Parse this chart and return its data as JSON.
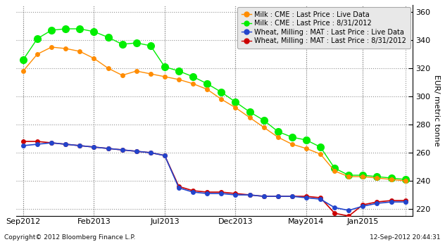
{
  "ylabel": "EUR/ metric tonne",
  "ylim": [
    215,
    365
  ],
  "yticks": [
    220,
    240,
    260,
    280,
    300,
    320,
    340,
    360
  ],
  "copyright": "Copyright© 2012 Bloomberg Finance L.P.",
  "date_label": "12-Sep-2012 20:44:31",
  "bg_color": "#ffffff",
  "legend_bg": "#e8e8e8",
  "series": [
    {
      "label": "Milk : CME : Last Price : Live Data",
      "color": "#ff8c00",
      "linewidth": 1.0,
      "markersize": 5,
      "x": [
        0,
        1,
        2,
        3,
        4,
        5,
        6,
        7,
        8,
        9,
        10,
        11,
        12,
        13,
        14,
        15,
        16,
        17,
        18,
        19,
        20,
        21,
        22,
        23,
        24,
        25,
        26,
        27
      ],
      "y": [
        318,
        330,
        335,
        334,
        332,
        327,
        320,
        315,
        318,
        316,
        314,
        312,
        309,
        305,
        298,
        292,
        285,
        278,
        271,
        266,
        263,
        259,
        247,
        243,
        243,
        242,
        241,
        240
      ]
    },
    {
      "label": "Milk : CME : Last Price : 8/31/2012",
      "color": "#00ee00",
      "linewidth": 1.0,
      "markersize": 8,
      "x": [
        0,
        1,
        2,
        3,
        4,
        5,
        6,
        7,
        8,
        9,
        10,
        11,
        12,
        13,
        14,
        15,
        16,
        17,
        18,
        19,
        20,
        21,
        22,
        23,
        24,
        25,
        26,
        27
      ],
      "y": [
        326,
        341,
        347,
        348,
        348,
        346,
        342,
        337,
        338,
        336,
        321,
        318,
        314,
        309,
        303,
        296,
        289,
        283,
        275,
        271,
        269,
        264,
        249,
        244,
        244,
        243,
        242,
        241
      ]
    },
    {
      "label": "Wheat, Milling : MAT : Last Price : Live Data",
      "color": "#2244cc",
      "linewidth": 1.2,
      "markersize": 5,
      "x": [
        0,
        1,
        2,
        3,
        4,
        5,
        6,
        7,
        8,
        9,
        10,
        11,
        12,
        13,
        14,
        15,
        16,
        17,
        18,
        19,
        20,
        21,
        22,
        23,
        24,
        25,
        26,
        27
      ],
      "y": [
        265,
        266,
        267,
        266,
        265,
        264,
        263,
        262,
        261,
        260,
        258,
        235,
        232,
        231,
        231,
        230,
        230,
        229,
        229,
        229,
        228,
        227,
        221,
        219,
        222,
        224,
        225,
        225
      ]
    },
    {
      "label": "Wheat, Milling : MAT : Last Price : 8/31/2012",
      "color": "#cc0000",
      "linewidth": 1.2,
      "markersize": 5,
      "x": [
        0,
        1,
        2,
        3,
        4,
        5,
        6,
        7,
        8,
        9,
        10,
        11,
        12,
        13,
        14,
        15,
        16,
        17,
        18,
        19,
        20,
        21,
        22,
        23,
        24,
        25,
        26,
        27
      ],
      "y": [
        268,
        268,
        267,
        266,
        265,
        264,
        263,
        262,
        261,
        260,
        258,
        236,
        233,
        232,
        232,
        231,
        230,
        229,
        229,
        229,
        229,
        228,
        217,
        215,
        223,
        225,
        226,
        226
      ]
    }
  ],
  "xtick_positions": [
    0,
    5,
    10,
    15,
    20,
    24,
    27
  ],
  "xtick_labels": [
    "Sep2012",
    "Feb2013",
    "Jul2013",
    "Dec2013",
    "May2014",
    "Jan2015",
    ""
  ],
  "grid_color": "#aaaaaa",
  "grid_linestyle": ":",
  "grid_linewidth": 0.8
}
